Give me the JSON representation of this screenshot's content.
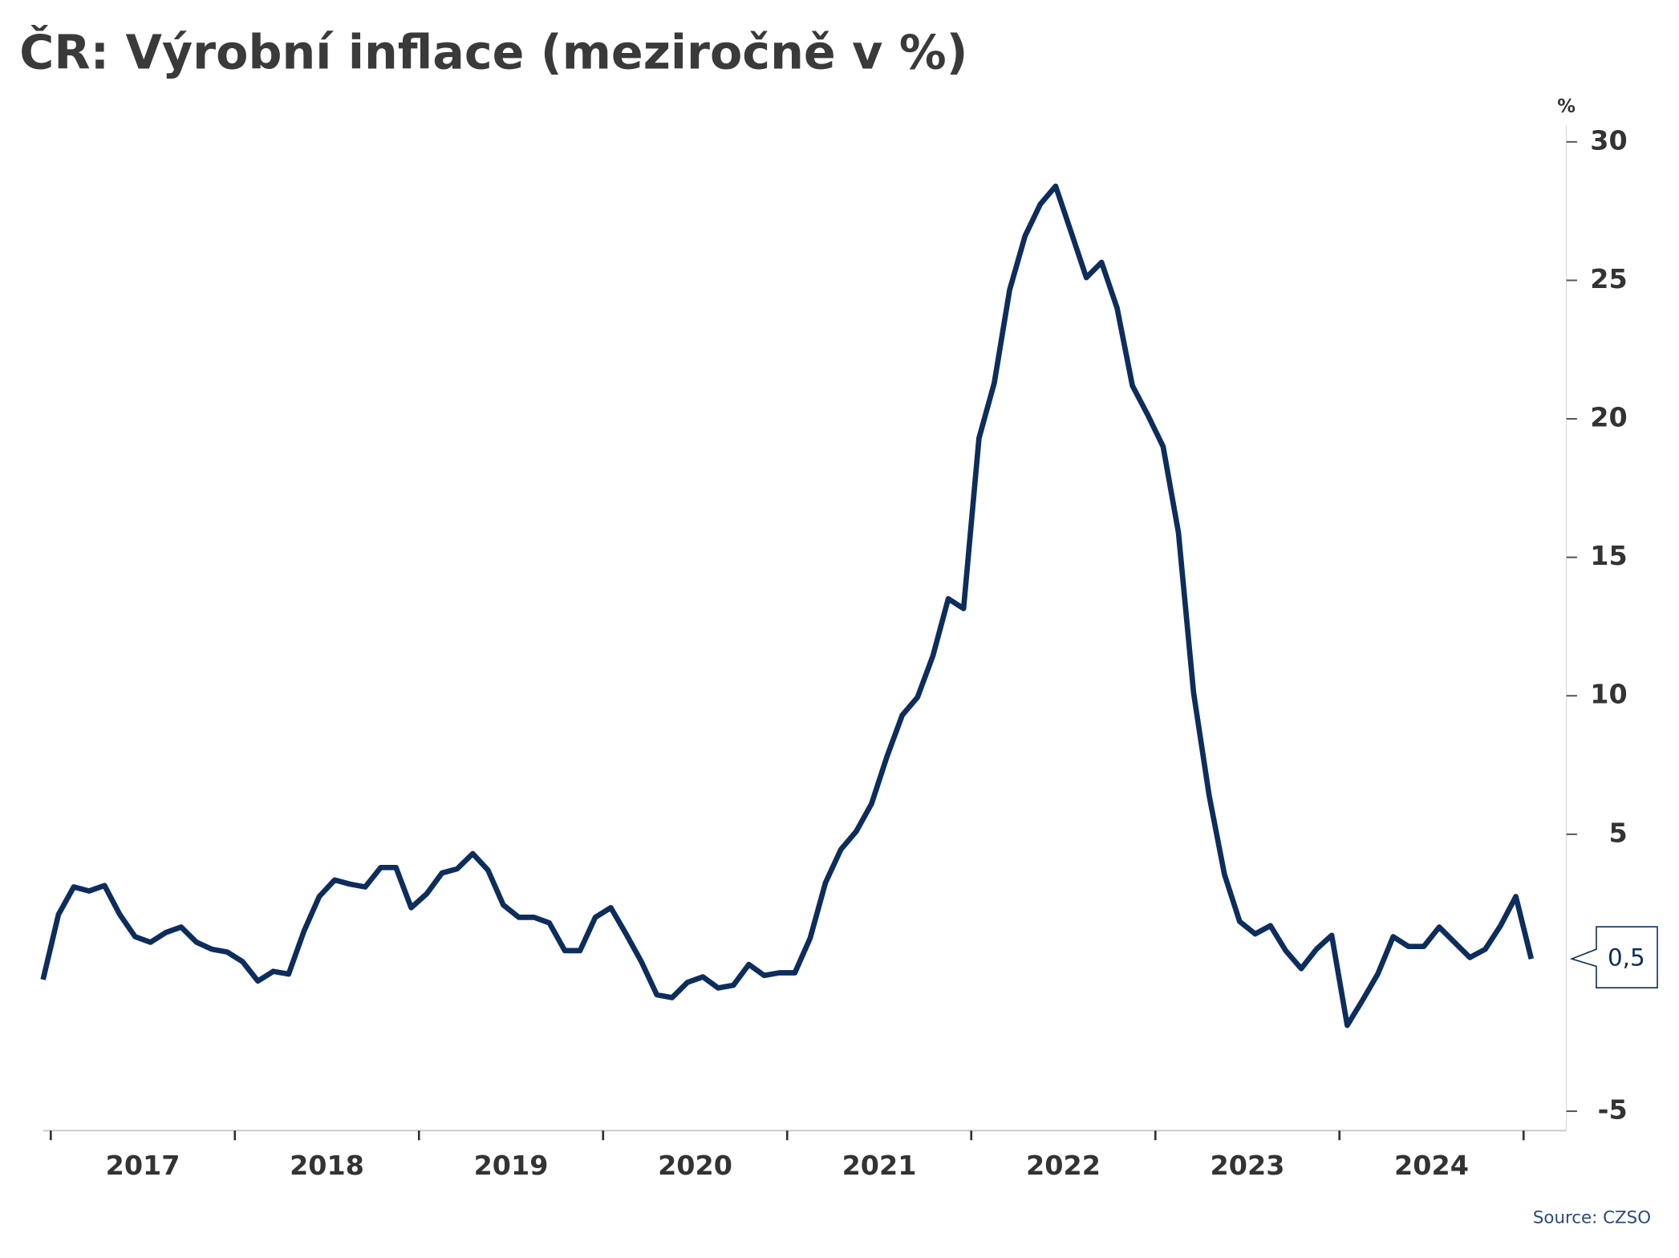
{
  "chart_data": {
    "type": "line",
    "title": "ČR: Výrobní inflace (meziročně v %)",
    "y_unit": "%",
    "source": "Source: CZSO",
    "x": [
      2016.958,
      2017.042,
      2017.125,
      2017.208,
      2017.292,
      2017.375,
      2017.458,
      2017.542,
      2017.625,
      2017.708,
      2017.792,
      2017.875,
      2017.958,
      2018.042,
      2018.125,
      2018.208,
      2018.292,
      2018.375,
      2018.458,
      2018.542,
      2018.625,
      2018.708,
      2018.792,
      2018.875,
      2018.958,
      2019.042,
      2019.125,
      2019.208,
      2019.292,
      2019.375,
      2019.458,
      2019.542,
      2019.625,
      2019.708,
      2019.792,
      2019.875,
      2019.958,
      2020.042,
      2020.125,
      2020.208,
      2020.292,
      2020.375,
      2020.458,
      2020.542,
      2020.625,
      2020.708,
      2020.792,
      2020.875,
      2020.958,
      2021.042,
      2021.125,
      2021.208,
      2021.292,
      2021.375,
      2021.458,
      2021.542,
      2021.625,
      2021.708,
      2021.792,
      2021.875,
      2021.958,
      2022.042,
      2022.125,
      2022.208,
      2022.292,
      2022.375,
      2022.458,
      2022.542,
      2022.625,
      2022.708,
      2022.792,
      2022.875,
      2022.958,
      2023.042,
      2023.125,
      2023.208,
      2023.292,
      2023.375,
      2023.458,
      2023.542,
      2023.625,
      2023.708,
      2023.792,
      2023.875,
      2023.958,
      2024.042,
      2024.125,
      2024.208,
      2024.292,
      2024.375,
      2024.458,
      2024.542,
      2024.625,
      2024.708,
      2024.792,
      2024.875,
      2024.958,
      2025.042
    ],
    "series": [
      {
        "name": "Výrobní inflace",
        "color": "#0d2d5c",
        "values": [
          -0.25,
          2.1,
          3.1,
          2.95,
          3.15,
          2.1,
          1.3,
          1.1,
          1.45,
          1.65,
          1.1,
          0.85,
          0.75,
          0.4,
          -0.3,
          0.05,
          -0.05,
          1.5,
          2.75,
          3.35,
          3.2,
          3.1,
          3.8,
          3.8,
          2.35,
          2.85,
          3.6,
          3.75,
          4.3,
          3.7,
          2.45,
          2.0,
          2.0,
          1.8,
          0.8,
          0.8,
          2.0,
          2.35,
          1.4,
          0.4,
          -0.8,
          -0.9,
          -0.35,
          -0.15,
          -0.55,
          -0.45,
          0.3,
          -0.1,
          0,
          0,
          1.25,
          3.25,
          4.45,
          5.1,
          6.1,
          7.8,
          9.3,
          9.95,
          11.45,
          13.5,
          13.15,
          19.3,
          21.3,
          24.65,
          26.6,
          27.75,
          28.4,
          26.75,
          25.1,
          25.65,
          24.0,
          21.2,
          20.15,
          19.0,
          15.9,
          10.1,
          6.4,
          3.55,
          1.85,
          1.4,
          1.7,
          0.8,
          0.15,
          0.85,
          1.35,
          -1.9,
          -1.0,
          -0.05,
          1.3,
          0.95,
          0.95,
          1.65,
          1.1,
          0.55,
          0.85,
          1.7,
          2.75,
          0.5
        ],
        "value_labels": [
          null,
          null,
          null,
          null,
          null,
          null,
          null,
          null,
          null,
          null,
          null,
          null,
          null,
          null,
          null,
          null,
          null,
          null,
          null,
          null,
          null,
          null,
          null,
          null,
          null,
          null,
          null,
          null,
          null,
          null,
          null,
          null,
          null,
          null,
          null,
          null,
          null,
          null,
          null,
          null,
          null,
          null,
          null,
          null,
          null,
          null,
          null,
          null,
          null,
          null,
          null,
          null,
          null,
          null,
          null,
          null,
          null,
          null,
          null,
          null,
          null,
          null,
          null,
          null,
          null,
          null,
          null,
          null,
          null,
          null,
          null,
          null,
          null,
          null,
          null,
          null,
          null,
          null,
          null,
          null,
          null,
          null,
          null,
          null,
          null,
          null,
          null,
          null,
          null,
          null,
          null,
          null,
          null,
          null,
          null,
          null,
          null,
          "0,5"
        ]
      }
    ],
    "xlim": [
      2016.958,
      2025.25
    ],
    "xticks": [
      2017,
      2018,
      2019,
      2020,
      2021,
      2022,
      2023,
      2024,
      2025
    ],
    "year_labels": [
      "2017",
      "2018",
      "2019",
      "2020",
      "2021",
      "2022",
      "2023",
      "2024"
    ],
    "ylim": [
      -5.7,
      30.6
    ],
    "yticks": [
      -5,
      5,
      10,
      15,
      20,
      25,
      30
    ]
  }
}
